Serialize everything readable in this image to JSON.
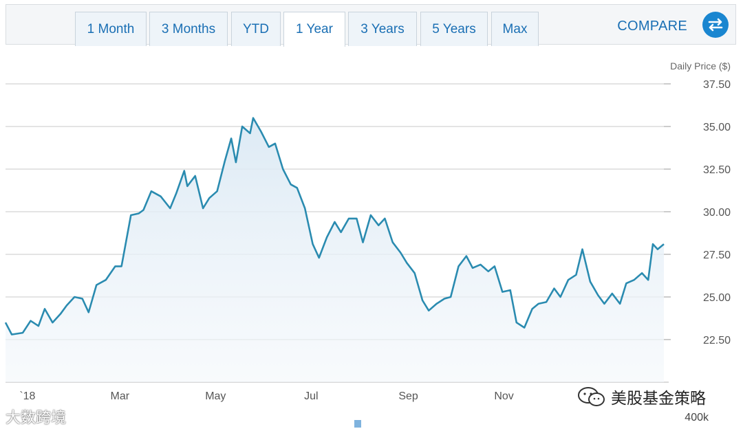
{
  "tabs": [
    {
      "label": "1 Month"
    },
    {
      "label": "3 Months"
    },
    {
      "label": "YTD"
    },
    {
      "label": "1 Year",
      "active": true
    },
    {
      "label": "3 Years"
    },
    {
      "label": "5 Years"
    },
    {
      "label": "Max"
    }
  ],
  "compare_label": "COMPARE",
  "volume_label": "400k",
  "watermarks": {
    "wechat": "美股基金策略",
    "dashuju": "大数跨境"
  },
  "colors": {
    "line": "#2a8bb0",
    "accent": "#1a6fb4",
    "grid": "#c8c8c8"
  },
  "chart_data": {
    "type": "area",
    "ylabel": "Daily Price ($)",
    "ylim": [
      20.0,
      37.5
    ],
    "y_ticks": [
      "22.50",
      "25.00",
      "27.50",
      "30.00",
      "32.50",
      "35.00",
      "37.50"
    ],
    "x_tick_labels": [
      "`18",
      "Mar",
      "May",
      "Jul",
      "Sep",
      "Nov"
    ],
    "x_tick_dates": [
      "2018-01-01",
      "2018-03-01",
      "2018-05-01",
      "2018-07-01",
      "2018-09-01",
      "2018-11-01"
    ],
    "grid": true,
    "series": [
      {
        "points": [
          [
            "2017-12-18",
            23.5
          ],
          [
            "2017-12-22",
            22.8
          ],
          [
            "2017-12-29",
            22.9
          ],
          [
            "2018-01-03",
            23.6
          ],
          [
            "2018-01-08",
            23.3
          ],
          [
            "2018-01-12",
            24.3
          ],
          [
            "2018-01-17",
            23.5
          ],
          [
            "2018-01-22",
            24.0
          ],
          [
            "2018-01-26",
            24.5
          ],
          [
            "2018-01-31",
            25.0
          ],
          [
            "2018-02-05",
            24.9
          ],
          [
            "2018-02-09",
            24.1
          ],
          [
            "2018-02-14",
            25.7
          ],
          [
            "2018-02-20",
            26.0
          ],
          [
            "2018-02-26",
            26.8
          ],
          [
            "2018-03-02",
            26.8
          ],
          [
            "2018-03-08",
            29.8
          ],
          [
            "2018-03-13",
            29.9
          ],
          [
            "2018-03-16",
            30.1
          ],
          [
            "2018-03-21",
            31.2
          ],
          [
            "2018-03-27",
            30.9
          ],
          [
            "2018-04-02",
            30.2
          ],
          [
            "2018-04-06",
            31.1
          ],
          [
            "2018-04-11",
            32.4
          ],
          [
            "2018-04-13",
            31.5
          ],
          [
            "2018-04-18",
            32.1
          ],
          [
            "2018-04-23",
            30.2
          ],
          [
            "2018-04-27",
            30.8
          ],
          [
            "2018-05-02",
            31.2
          ],
          [
            "2018-05-07",
            33.0
          ],
          [
            "2018-05-11",
            34.3
          ],
          [
            "2018-05-14",
            32.9
          ],
          [
            "2018-05-18",
            35.0
          ],
          [
            "2018-05-23",
            34.6
          ],
          [
            "2018-05-25",
            35.5
          ],
          [
            "2018-05-30",
            34.7
          ],
          [
            "2018-06-04",
            33.8
          ],
          [
            "2018-06-08",
            34.0
          ],
          [
            "2018-06-13",
            32.5
          ],
          [
            "2018-06-18",
            31.6
          ],
          [
            "2018-06-22",
            31.4
          ],
          [
            "2018-06-27",
            30.2
          ],
          [
            "2018-07-02",
            28.1
          ],
          [
            "2018-07-06",
            27.3
          ],
          [
            "2018-07-11",
            28.5
          ],
          [
            "2018-07-16",
            29.4
          ],
          [
            "2018-07-20",
            28.8
          ],
          [
            "2018-07-25",
            29.6
          ],
          [
            "2018-07-30",
            29.6
          ],
          [
            "2018-08-03",
            28.2
          ],
          [
            "2018-08-08",
            29.8
          ],
          [
            "2018-08-13",
            29.2
          ],
          [
            "2018-08-17",
            29.6
          ],
          [
            "2018-08-22",
            28.2
          ],
          [
            "2018-08-27",
            27.6
          ],
          [
            "2018-08-31",
            27.0
          ],
          [
            "2018-09-05",
            26.4
          ],
          [
            "2018-09-10",
            24.8
          ],
          [
            "2018-09-14",
            24.2
          ],
          [
            "2018-09-19",
            24.6
          ],
          [
            "2018-09-24",
            24.9
          ],
          [
            "2018-09-28",
            25.0
          ],
          [
            "2018-10-03",
            26.8
          ],
          [
            "2018-10-08",
            27.4
          ],
          [
            "2018-10-12",
            26.7
          ],
          [
            "2018-10-17",
            26.9
          ],
          [
            "2018-10-22",
            26.5
          ],
          [
            "2018-10-26",
            26.8
          ],
          [
            "2018-10-31",
            25.3
          ],
          [
            "2018-11-05",
            25.4
          ],
          [
            "2018-11-09",
            23.5
          ],
          [
            "2018-11-14",
            23.2
          ],
          [
            "2018-11-19",
            24.3
          ],
          [
            "2018-11-23",
            24.6
          ],
          [
            "2018-11-28",
            24.7
          ],
          [
            "2018-12-03",
            25.5
          ],
          [
            "2018-12-07",
            25.0
          ],
          [
            "2018-12-12",
            26.0
          ],
          [
            "2018-12-17",
            26.3
          ],
          [
            "2018-12-21",
            27.8
          ],
          [
            "2018-12-26",
            25.9
          ],
          [
            "2018-12-31",
            25.1
          ],
          [
            "2019-01-04",
            24.6
          ],
          [
            "2019-01-09",
            25.2
          ],
          [
            "2019-01-14",
            24.6
          ],
          [
            "2019-01-18",
            25.8
          ],
          [
            "2019-01-23",
            26.0
          ],
          [
            "2019-01-28",
            26.4
          ],
          [
            "2019-02-01",
            26.0
          ],
          [
            "2019-02-04",
            28.1
          ],
          [
            "2019-02-07",
            27.8
          ],
          [
            "2019-02-11",
            28.1
          ]
        ]
      }
    ]
  }
}
